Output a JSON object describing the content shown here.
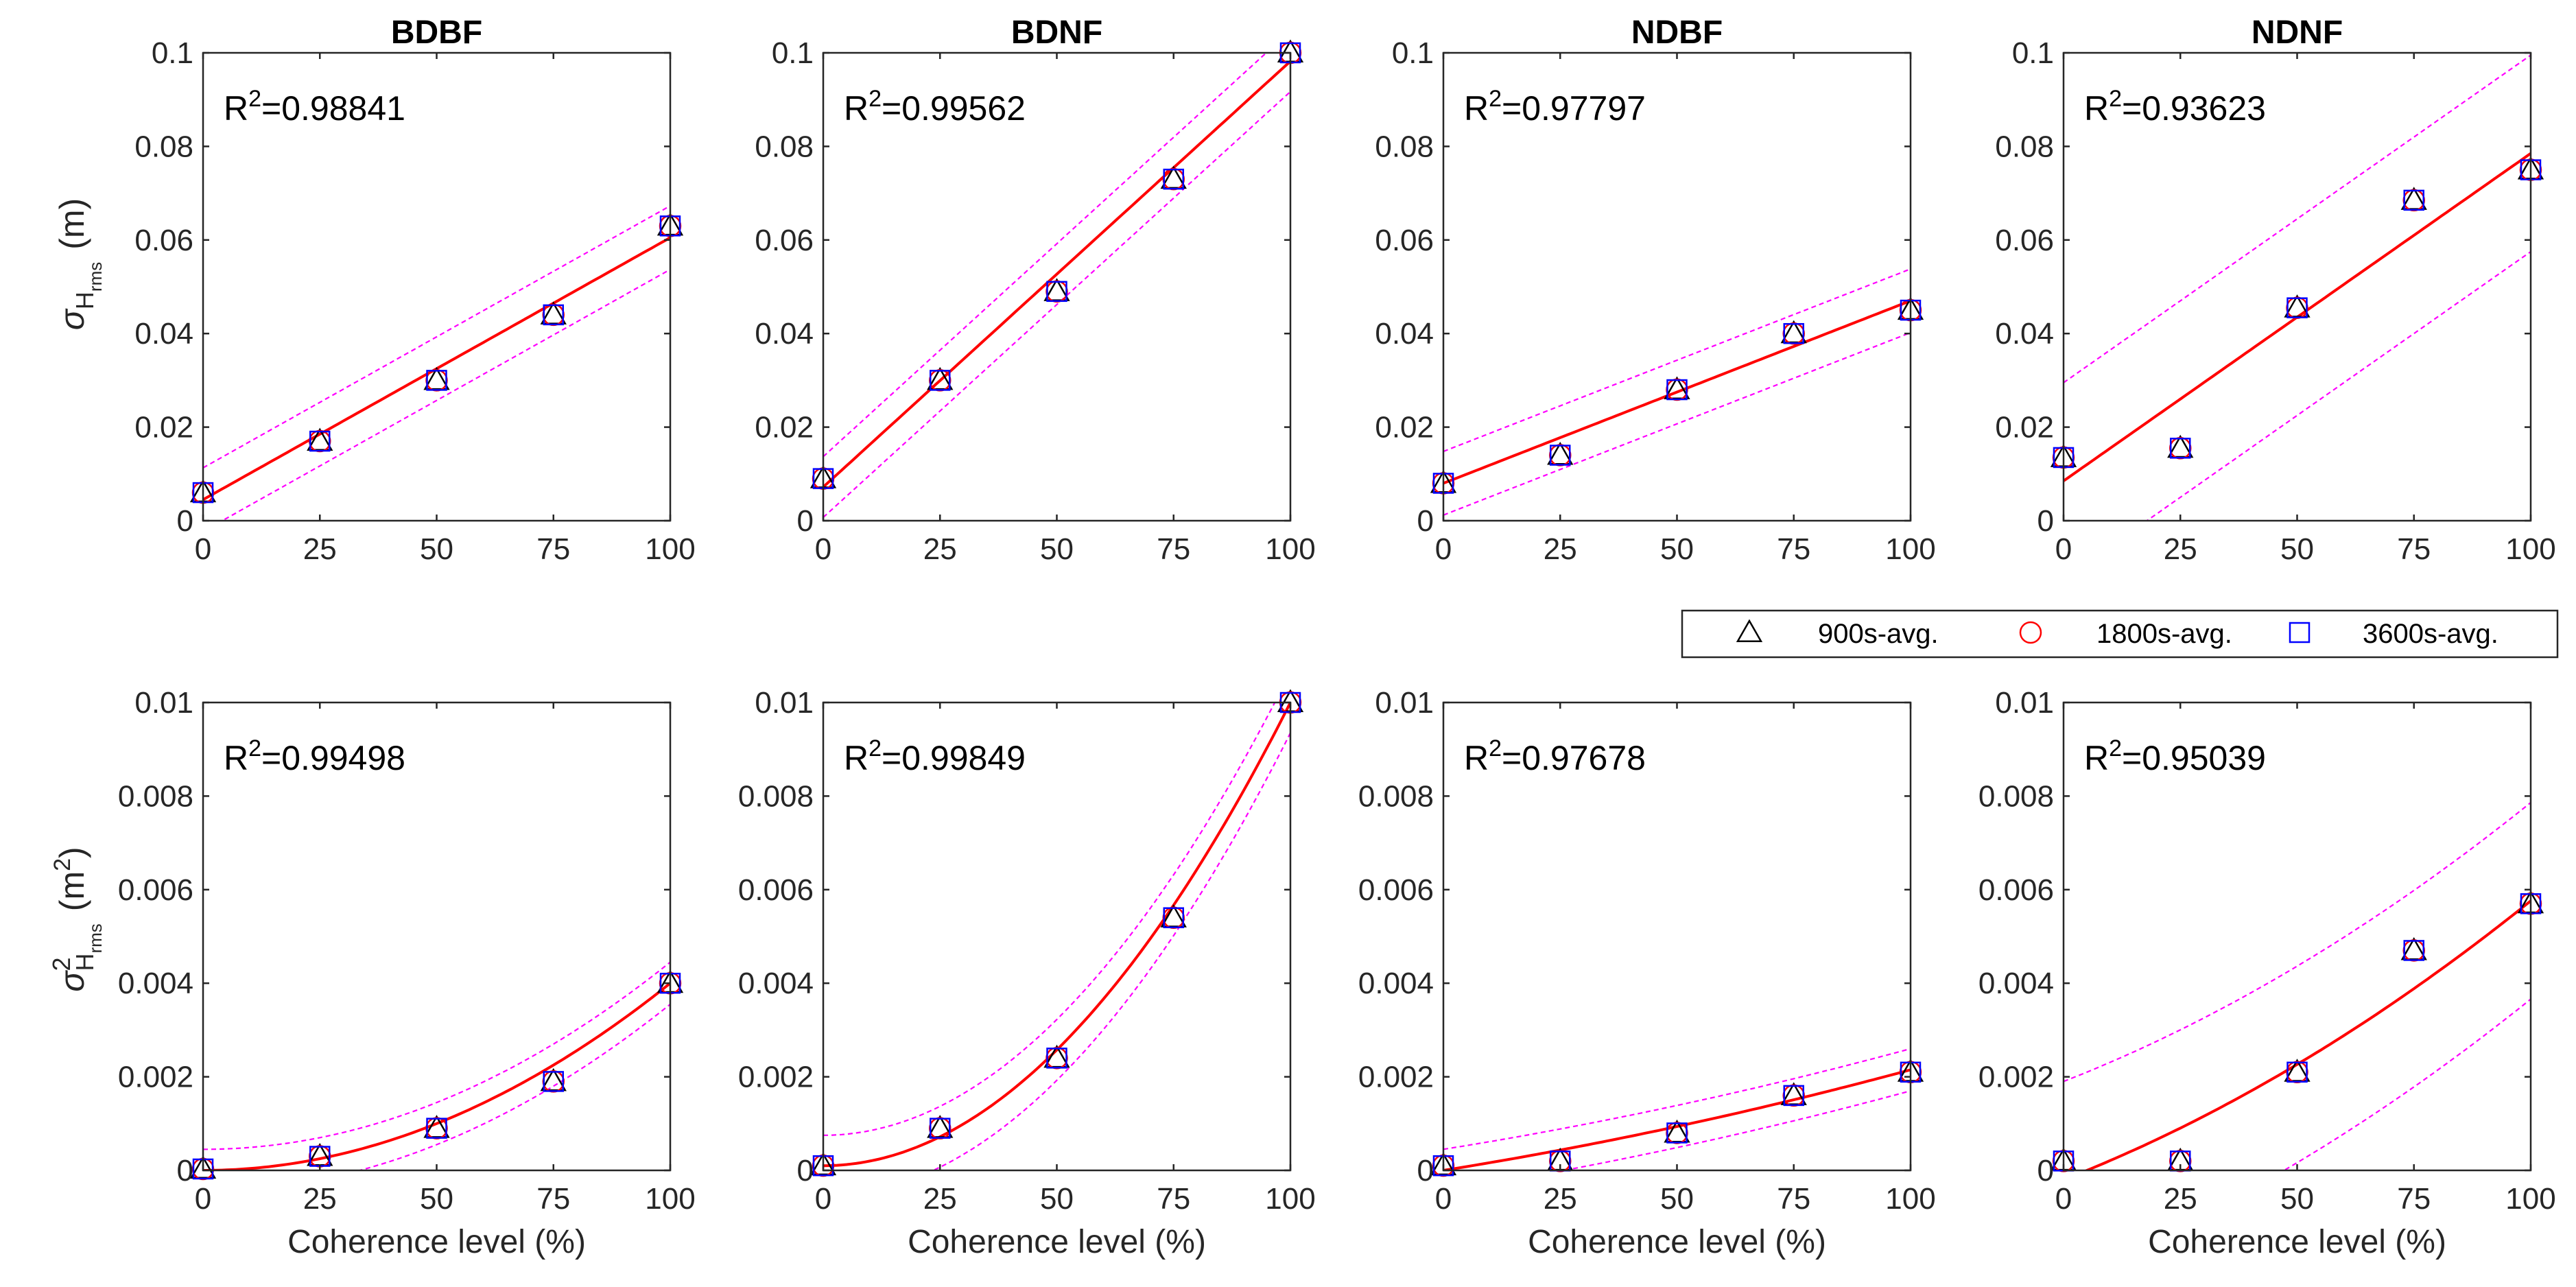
{
  "figure": {
    "row_ylabels": [
      {
        "sigma": "σ",
        "sub": "H",
        "subsub": "rms",
        "sup": "",
        "unit": "(m)",
        "unit_sup": ""
      },
      {
        "sigma": "σ",
        "sub": "H",
        "subsub": "rms",
        "sup": "2",
        "unit": "(m",
        "unit_sup": "2",
        "unit_close": ")"
      }
    ],
    "legend": {
      "entries": [
        {
          "label": "900s-avg.",
          "marker": "triangle",
          "color": "#000000"
        },
        {
          "label": "1800s-avg.",
          "marker": "circle",
          "color": "#ff0000"
        },
        {
          "label": "3600s-avg.",
          "marker": "square",
          "color": "#0000ff"
        }
      ]
    },
    "colors": {
      "fit": "#ff0000",
      "bounds": "#ff00ff",
      "axis": "#262626"
    }
  },
  "chart_data": [
    {
      "type": "scatter",
      "title": "BDBF",
      "xlabel": "",
      "r2_prefix": "R",
      "r2_sup": "2",
      "r2_value": "=0.98841",
      "x": [
        0,
        25,
        50,
        75,
        100
      ],
      "xlim": [
        0,
        100
      ],
      "ylim": [
        0,
        0.1
      ],
      "xticks": [
        "0",
        "25",
        "50",
        "75",
        "100"
      ],
      "yticks": [
        "0",
        "0.02",
        "0.04",
        "0.06",
        "0.08",
        "0.1"
      ],
      "series": [
        {
          "name": "900s-avg.",
          "values": [
            0.006,
            0.017,
            0.03,
            0.044,
            0.063
          ]
        },
        {
          "name": "1800s-avg.",
          "values": [
            0.006,
            0.017,
            0.03,
            0.044,
            0.063
          ]
        },
        {
          "name": "3600s-avg.",
          "values": [
            0.006,
            0.017,
            0.03,
            0.044,
            0.063
          ]
        }
      ],
      "fit": {
        "poly": [
          0.0045,
          0.00056,
          0
        ],
        "band": 0.0068
      }
    },
    {
      "type": "scatter",
      "title": "BDNF",
      "xlabel": "",
      "r2_prefix": "R",
      "r2_sup": "2",
      "r2_value": "=0.99562",
      "x": [
        0,
        25,
        50,
        75,
        100
      ],
      "xlim": [
        0,
        100
      ],
      "ylim": [
        0,
        0.1
      ],
      "xticks": [
        "0",
        "25",
        "50",
        "75",
        "100"
      ],
      "yticks": [
        "0",
        "0.02",
        "0.04",
        "0.06",
        "0.08",
        "0.1"
      ],
      "series": [
        {
          "name": "900s-avg.",
          "values": [
            0.009,
            0.03,
            0.049,
            0.073,
            0.1
          ]
        },
        {
          "name": "1800s-avg.",
          "values": [
            0.009,
            0.03,
            0.049,
            0.073,
            0.1
          ]
        },
        {
          "name": "3600s-avg.",
          "values": [
            0.009,
            0.03,
            0.049,
            0.073,
            0.1
          ]
        }
      ],
      "fit": {
        "poly": [
          0.0072,
          0.00091,
          0
        ],
        "band": 0.0065
      }
    },
    {
      "type": "scatter",
      "title": "NDBF",
      "xlabel": "",
      "r2_prefix": "R",
      "r2_sup": "2",
      "r2_value": "=0.97797",
      "x": [
        0,
        25,
        50,
        75,
        100
      ],
      "xlim": [
        0,
        100
      ],
      "ylim": [
        0,
        0.1
      ],
      "xticks": [
        "0",
        "25",
        "50",
        "75",
        "100"
      ],
      "yticks": [
        "0",
        "0.02",
        "0.04",
        "0.06",
        "0.08",
        "0.1"
      ],
      "series": [
        {
          "name": "900s-avg.",
          "values": [
            0.008,
            0.014,
            0.028,
            0.04,
            0.045
          ]
        },
        {
          "name": "1800s-avg.",
          "values": [
            0.008,
            0.014,
            0.028,
            0.04,
            0.045
          ]
        },
        {
          "name": "3600s-avg.",
          "values": [
            0.008,
            0.014,
            0.028,
            0.04,
            0.045
          ]
        }
      ],
      "fit": {
        "poly": [
          0.008,
          0.00039,
          0
        ],
        "band": 0.0068
      }
    },
    {
      "type": "scatter",
      "title": "NDNF",
      "xlabel": "",
      "r2_prefix": "R",
      "r2_sup": "2",
      "r2_value": "=0.93623",
      "x": [
        0,
        25,
        50,
        75,
        100
      ],
      "xlim": [
        0,
        100
      ],
      "ylim": [
        0,
        0.1
      ],
      "xticks": [
        "0",
        "25",
        "50",
        "75",
        "100"
      ],
      "yticks": [
        "0",
        "0.02",
        "0.04",
        "0.06",
        "0.08",
        "0.1"
      ],
      "series": [
        {
          "name": "900s-avg.",
          "values": [
            0.0135,
            0.0155,
            0.0455,
            0.0685,
            0.075
          ]
        },
        {
          "name": "1800s-avg.",
          "values": [
            0.0135,
            0.0155,
            0.0455,
            0.0685,
            0.075
          ]
        },
        {
          "name": "3600s-avg.",
          "values": [
            0.0135,
            0.0155,
            0.0455,
            0.0685,
            0.075
          ]
        }
      ],
      "fit": {
        "poly": [
          0.0085,
          0.0007,
          0
        ],
        "band": 0.021
      }
    },
    {
      "type": "scatter",
      "title": "",
      "xlabel": "Coherence level (%)",
      "r2_prefix": "R",
      "r2_sup": "2",
      "r2_value": "=0.99498",
      "x": [
        0,
        25,
        50,
        75,
        100
      ],
      "xlim": [
        0,
        100
      ],
      "ylim": [
        0,
        0.01
      ],
      "xticks": [
        "0",
        "25",
        "50",
        "75",
        "100"
      ],
      "yticks": [
        "0",
        "0.002",
        "0.004",
        "0.006",
        "0.008",
        "0.01"
      ],
      "series": [
        {
          "name": "900s-avg.",
          "values": [
            3e-05,
            0.0003,
            0.0009,
            0.0019,
            0.004
          ]
        },
        {
          "name": "1800s-avg.",
          "values": [
            3e-05,
            0.0003,
            0.0009,
            0.0019,
            0.004
          ]
        },
        {
          "name": "3600s-avg.",
          "values": [
            3e-05,
            0.0003,
            0.0009,
            0.0019,
            0.004
          ]
        }
      ],
      "fit": {
        "poly": [
          0,
          0,
          4e-07
        ],
        "band": 0.00045
      }
    },
    {
      "type": "scatter",
      "title": "",
      "xlabel": "Coherence level (%)",
      "r2_prefix": "R",
      "r2_sup": "2",
      "r2_value": "=0.99849",
      "x": [
        0,
        25,
        50,
        75,
        100
      ],
      "xlim": [
        0,
        100
      ],
      "ylim": [
        0,
        0.01
      ],
      "xticks": [
        "0",
        "25",
        "50",
        "75",
        "100"
      ],
      "yticks": [
        "0",
        "0.002",
        "0.004",
        "0.006",
        "0.008",
        "0.01"
      ],
      "series": [
        {
          "name": "900s-avg.",
          "values": [
            0.0001,
            0.0009,
            0.0024,
            0.0054,
            0.01
          ]
        },
        {
          "name": "1800s-avg.",
          "values": [
            0.0001,
            0.0009,
            0.0024,
            0.0054,
            0.01
          ]
        },
        {
          "name": "3600s-avg.",
          "values": [
            0.0001,
            0.0009,
            0.0024,
            0.0054,
            0.01
          ]
        }
      ],
      "fit": {
        "poly": [
          0.0001,
          0,
          9.9e-07
        ],
        "band": 0.00065
      }
    },
    {
      "type": "scatter",
      "title": "",
      "xlabel": "Coherence level (%)",
      "r2_prefix": "R",
      "r2_sup": "2",
      "r2_value": "=0.97678",
      "x": [
        0,
        25,
        50,
        75,
        100
      ],
      "xlim": [
        0,
        100
      ],
      "ylim": [
        0,
        0.01
      ],
      "xticks": [
        "0",
        "25",
        "50",
        "75",
        "100"
      ],
      "yticks": [
        "0",
        "0.002",
        "0.004",
        "0.006",
        "0.008",
        "0.01"
      ],
      "series": [
        {
          "name": "900s-avg.",
          "values": [
            0.0001,
            0.0002,
            0.0008,
            0.0016,
            0.0021
          ]
        },
        {
          "name": "1800s-avg.",
          "values": [
            0.0001,
            0.0002,
            0.0008,
            0.0016,
            0.0021
          ]
        },
        {
          "name": "3600s-avg.",
          "values": [
            0.0001,
            0.0002,
            0.0008,
            0.0016,
            0.0021
          ]
        }
      ],
      "fit": {
        "poly": [
          0,
          1.6e-05,
          5.5e-08
        ],
        "band": 0.00045
      }
    },
    {
      "type": "scatter",
      "title": "",
      "xlabel": "Coherence level (%)",
      "r2_prefix": "R",
      "r2_sup": "2",
      "r2_value": "=0.95039",
      "x": [
        0,
        25,
        50,
        75,
        100
      ],
      "xlim": [
        0,
        100
      ],
      "ylim": [
        0,
        0.01
      ],
      "xticks": [
        "0",
        "25",
        "50",
        "75",
        "100"
      ],
      "yticks": [
        "0",
        "0.002",
        "0.004",
        "0.006",
        "0.008",
        "0.01"
      ],
      "series": [
        {
          "name": "900s-avg.",
          "values": [
            0.0002,
            0.0002,
            0.0021,
            0.0047,
            0.0057
          ]
        },
        {
          "name": "1800s-avg.",
          "values": [
            0.0002,
            0.0002,
            0.0021,
            0.0047,
            0.0057
          ]
        },
        {
          "name": "3600s-avg.",
          "values": [
            0.0002,
            0.0002,
            0.0021,
            0.0047,
            0.0057
          ]
        }
      ],
      "fit": {
        "poly": [
          -0.0002,
          3.9e-05,
          2.06e-07
        ],
        "band": 0.0021
      }
    }
  ]
}
